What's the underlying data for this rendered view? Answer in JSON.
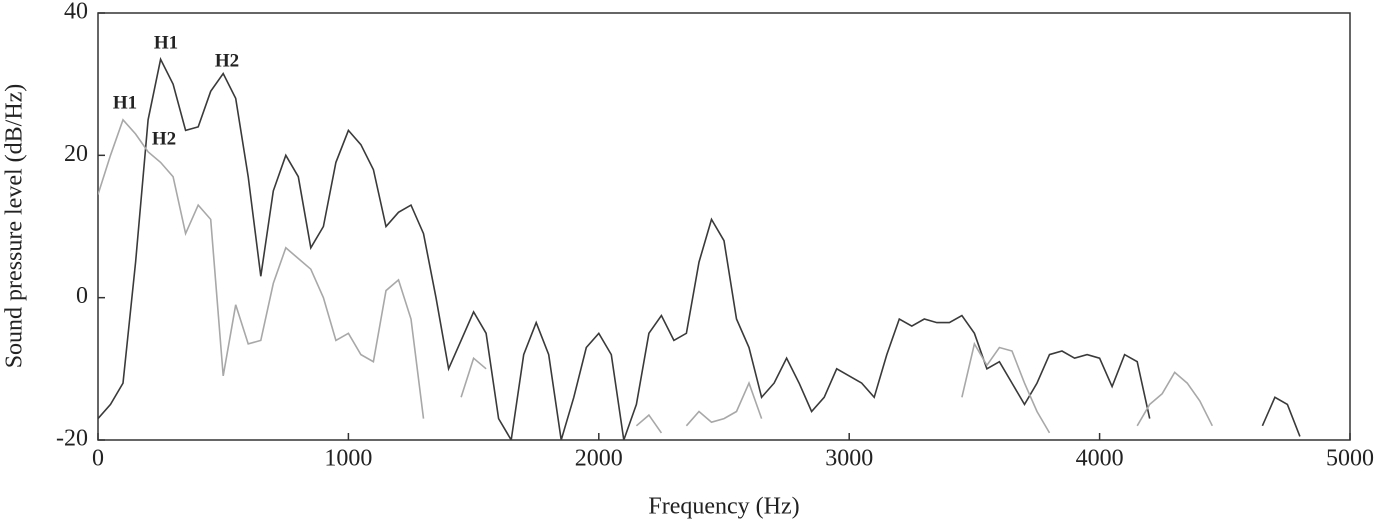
{
  "chart_data": {
    "type": "line",
    "x_label": "Frequency (Hz)",
    "y_label": "Sound pressure level (dB/Hz)",
    "x": [
      0,
      50,
      100,
      150,
      200,
      250,
      300,
      350,
      400,
      450,
      500,
      550,
      600,
      650,
      700,
      750,
      800,
      850,
      900,
      950,
      1000,
      1050,
      1100,
      1150,
      1200,
      1250,
      1300,
      1350,
      1400,
      1450,
      1500,
      1550,
      1600,
      1650,
      1700,
      1750,
      1800,
      1850,
      1900,
      1950,
      2000,
      2050,
      2100,
      2150,
      2200,
      2250,
      2300,
      2350,
      2400,
      2450,
      2500,
      2550,
      2600,
      2650,
      2700,
      2750,
      2800,
      2850,
      2900,
      2950,
      3000,
      3050,
      3100,
      3150,
      3200,
      3250,
      3300,
      3350,
      3400,
      3450,
      3500,
      3550,
      3600,
      3650,
      3700,
      3750,
      3800,
      3850,
      3900,
      3950,
      4000,
      4050,
      4100,
      4150,
      4200,
      4250,
      4300,
      4350,
      4400,
      4450,
      4500,
      4550,
      4600,
      4650,
      4700,
      4750,
      4800,
      4850,
      4900,
      4950,
      5000
    ],
    "series": [
      {
        "color": "#3a3a3a",
        "values": [
          -17,
          -15,
          -12,
          5,
          25,
          33.5,
          30,
          23.5,
          24,
          29,
          31.5,
          28,
          17,
          3,
          15,
          20,
          17,
          7,
          10,
          19,
          23.5,
          21.5,
          18,
          10,
          12,
          13,
          9,
          0,
          -10,
          -6,
          -2,
          -5,
          -17,
          -20,
          -8,
          -3.5,
          -8,
          -20,
          -14,
          -7,
          -5,
          -8,
          -20,
          -15,
          -5,
          -2.5,
          -6,
          -5,
          5,
          11,
          8,
          -3,
          -7,
          -14,
          -12,
          -8.5,
          -12,
          -16,
          -14,
          -10,
          -11,
          -12,
          -14,
          -8,
          -3,
          -4,
          -3,
          -3.5,
          -3.5,
          -2.5,
          -5,
          -10,
          -9,
          -12,
          -15,
          -12,
          -8,
          -7.5,
          -8.5,
          -8,
          -8.5,
          -12.5,
          -8,
          -9,
          -17,
          null,
          null,
          null,
          null,
          null,
          null,
          null,
          null,
          -18,
          -14,
          -15,
          -19.5,
          null,
          null,
          null,
          null
        ]
      },
      {
        "color": "#a8a8a8",
        "values": [
          14.5,
          20,
          25,
          23,
          20.5,
          19,
          17,
          9,
          13,
          11,
          -11,
          -1,
          -6.5,
          -6,
          2,
          7,
          5.5,
          4,
          0,
          -6,
          -5,
          -8,
          -9,
          1,
          2.5,
          -3,
          -17,
          null,
          null,
          -14,
          -8.5,
          -10,
          null,
          null,
          null,
          null,
          null,
          null,
          null,
          null,
          null,
          null,
          null,
          -18,
          -16.5,
          -19,
          null,
          -18,
          -16,
          -17.5,
          -17,
          -16,
          -12,
          -17,
          null,
          null,
          null,
          null,
          null,
          null,
          null,
          null,
          null,
          null,
          null,
          null,
          null,
          null,
          null,
          -14,
          -6.5,
          -9.5,
          -7,
          -7.5,
          -12,
          -16,
          -19,
          null,
          null,
          null,
          null,
          null,
          null,
          -18,
          -15,
          -13.5,
          -10.5,
          -12,
          -14.5,
          -18,
          null,
          null,
          null,
          null,
          null,
          null,
          null,
          null,
          null,
          null,
          null
        ]
      }
    ],
    "annotations": [
      "H1",
      "H2",
      "H1",
      "H2"
    ],
    "xlim": [
      0,
      5000
    ],
    "xticks": [
      0,
      1000,
      2000,
      3000,
      4000,
      5000
    ],
    "ylim": [
      -20,
      40
    ],
    "yticks": [
      -20,
      0,
      20,
      40
    ]
  }
}
